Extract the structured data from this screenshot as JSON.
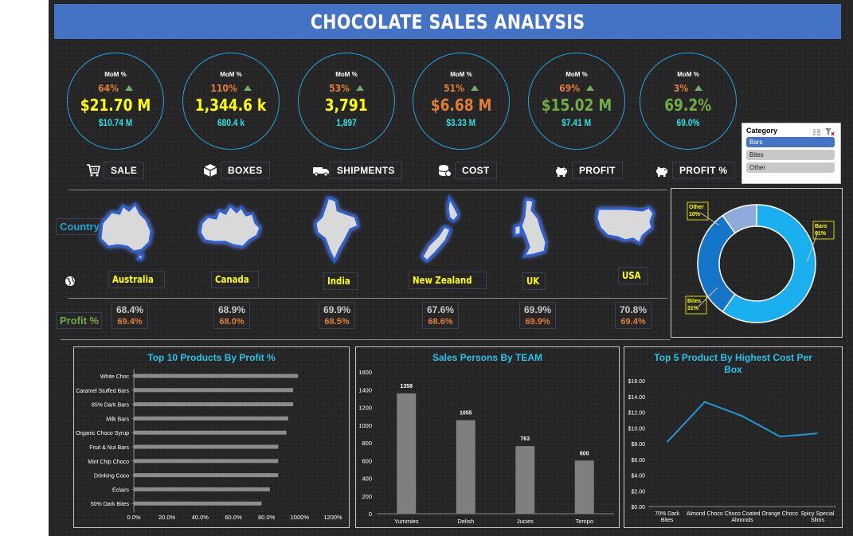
{
  "title": "CHOCOLATE SALES ANALYSIS",
  "kpis": [
    {
      "mom_label": "MoM %",
      "mom_pct": "64%",
      "value": "$21.70 M",
      "prev": "$10.74 M",
      "label": "SALE",
      "value_color": "#ffff00",
      "pct_color": "#e47d34",
      "icon": "cart-icon"
    },
    {
      "mom_label": "MoM %",
      "mom_pct": "110%",
      "value": "1,344.6 k",
      "prev": "680.4 k",
      "label": "BOXES",
      "value_color": "#ffff00",
      "pct_color": "#e47d34",
      "icon": "box-icon"
    },
    {
      "mom_label": "MoM %",
      "mom_pct": "53%",
      "value": "3,791",
      "prev": "1,897",
      "label": "SHIPMENTS",
      "value_color": "#ffff00",
      "pct_color": "#e47d34",
      "icon": "truck-icon"
    },
    {
      "mom_label": "MoM %",
      "mom_pct": "51%",
      "value": "$6.68 M",
      "prev": "$3.33 M",
      "label": "COST",
      "value_color": "#e47d34",
      "pct_color": "#e47d34",
      "icon": "coins-icon"
    },
    {
      "mom_label": "MoM %",
      "mom_pct": "69%",
      "value": "$15.02 M",
      "prev": "$7.41 M",
      "label": "PROFIT",
      "value_color": "#70ad47",
      "pct_color": "#e47d34",
      "icon": "piggy-bank-icon"
    },
    {
      "mom_label": "MoM %",
      "mom_pct": "3%",
      "value": "69.2%",
      "prev": "69.0%",
      "label": "PROFIT %",
      "value_color": "#70ad47",
      "pct_color": "#e47d34",
      "icon": "piggy-bank-icon"
    }
  ],
  "country_label": "Country",
  "profit_label": "Profit %",
  "countries": [
    {
      "name": "Australia",
      "profit": "68.4%",
      "profit_prev": "69.4%"
    },
    {
      "name": "Canada",
      "profit": "68.9%",
      "profit_prev": "68.0%"
    },
    {
      "name": "India",
      "profit": "69.9%",
      "profit_prev": "68.5%"
    },
    {
      "name": "New Zealand",
      "profit": "67.6%",
      "profit_prev": "68.6%"
    },
    {
      "name": "UK",
      "profit": "69.9%",
      "profit_prev": "69.9%"
    },
    {
      "name": "USA",
      "profit": "70.8%",
      "profit_prev": "69.4%"
    }
  ],
  "slicer": {
    "header": "Category",
    "items": [
      {
        "label": "Bars",
        "selected": true
      },
      {
        "label": "Bites",
        "selected": false
      },
      {
        "label": "Other",
        "selected": false
      }
    ]
  },
  "colors": {
    "accent": "#1fa5d8",
    "title_bar": "#4472c4",
    "bar_gray": "#7f7f7f",
    "line_blue": "#1f9ad6"
  },
  "chart_data": [
    {
      "type": "pie",
      "variant": "donut",
      "categories": [
        "Bars",
        "Bites",
        "Other"
      ],
      "values": [
        61,
        31,
        10
      ],
      "labels": [
        "Bars\n61%",
        "Bites\n31%",
        "Other\n10%"
      ],
      "colors": [
        "#1ab0ef",
        "#1575c8",
        "#8eaadb"
      ]
    },
    {
      "type": "bar",
      "orientation": "horizontal",
      "title": "Top 10 Products By Profit %",
      "categories": [
        "White Choc",
        "Caramel Stuffed Bars",
        "85% Dark Bars",
        "Milk Bars",
        "Organic Choco Syrup",
        "Fruit & Nut Bars",
        "Mint Chip Choco",
        "Drinking Coco",
        "Eclairs",
        "50% Dark Bites"
      ],
      "values": [
        0.99,
        0.96,
        0.96,
        0.93,
        0.92,
        0.87,
        0.87,
        0.87,
        0.82,
        0.77
      ],
      "xlim": [
        0,
        12
      ],
      "xticks": [
        "0.0%",
        "20.0%",
        "40.0%",
        "60.0%",
        "80.0%",
        "1000%",
        "1200%"
      ]
    },
    {
      "type": "bar",
      "title": "Sales Persons By TEAM",
      "categories": [
        "Yummies",
        "Delish",
        "Jucies",
        "Tempo"
      ],
      "values": [
        1358,
        1055,
        763,
        600
      ],
      "data_labels": [
        "1358",
        "1055",
        "763",
        "600"
      ],
      "ylim": [
        0,
        1600
      ],
      "yticks": [
        "0",
        "200",
        "400",
        "600",
        "800",
        "1000",
        "1200",
        "1400",
        "1600"
      ]
    },
    {
      "type": "line",
      "title": "Top 5 Product By Highest Cost Per Box",
      "categories": [
        "70% Dark Bites",
        "Almond Choco",
        "Choco Coated Almonds",
        "Orange Choco",
        "Spicy Special Slims"
      ],
      "values": [
        8.2,
        13.3,
        11.5,
        8.9,
        9.3
      ],
      "ylim": [
        0,
        16
      ],
      "yticks": [
        "$0.00",
        "$2.00",
        "$4.00",
        "$6.00",
        "$8.00",
        "$10.00",
        "$12.00",
        "$14.00",
        "$16.00"
      ]
    }
  ]
}
